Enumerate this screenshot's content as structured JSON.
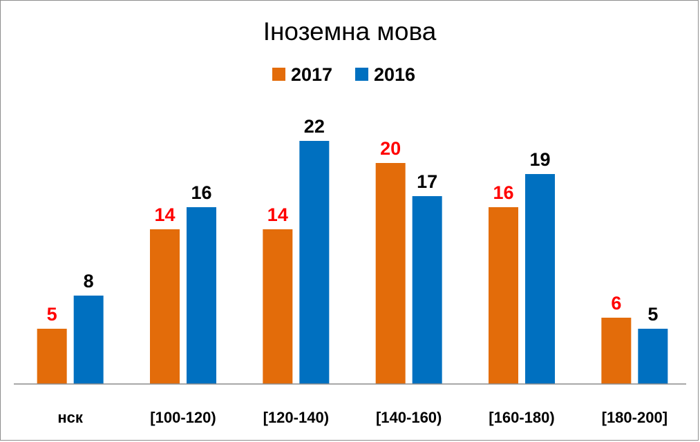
{
  "chart_data": {
    "type": "bar",
    "title": "Іноземна мова",
    "categories": [
      "нск",
      "[100-120)",
      "[120-140)",
      "[140-160)",
      "[160-180)",
      "[180-200]"
    ],
    "series": [
      {
        "name": "2017",
        "values": [
          5,
          14,
          14,
          20,
          16,
          6
        ],
        "color": "#e36c0a",
        "label_color": "#ff0000"
      },
      {
        "name": "2016",
        "values": [
          8,
          16,
          22,
          17,
          19,
          5
        ],
        "color": "#0070c0",
        "label_color": "#000000"
      }
    ],
    "ylim": [
      0,
      25
    ],
    "grid": false,
    "legend": "top",
    "data_labels": true
  }
}
